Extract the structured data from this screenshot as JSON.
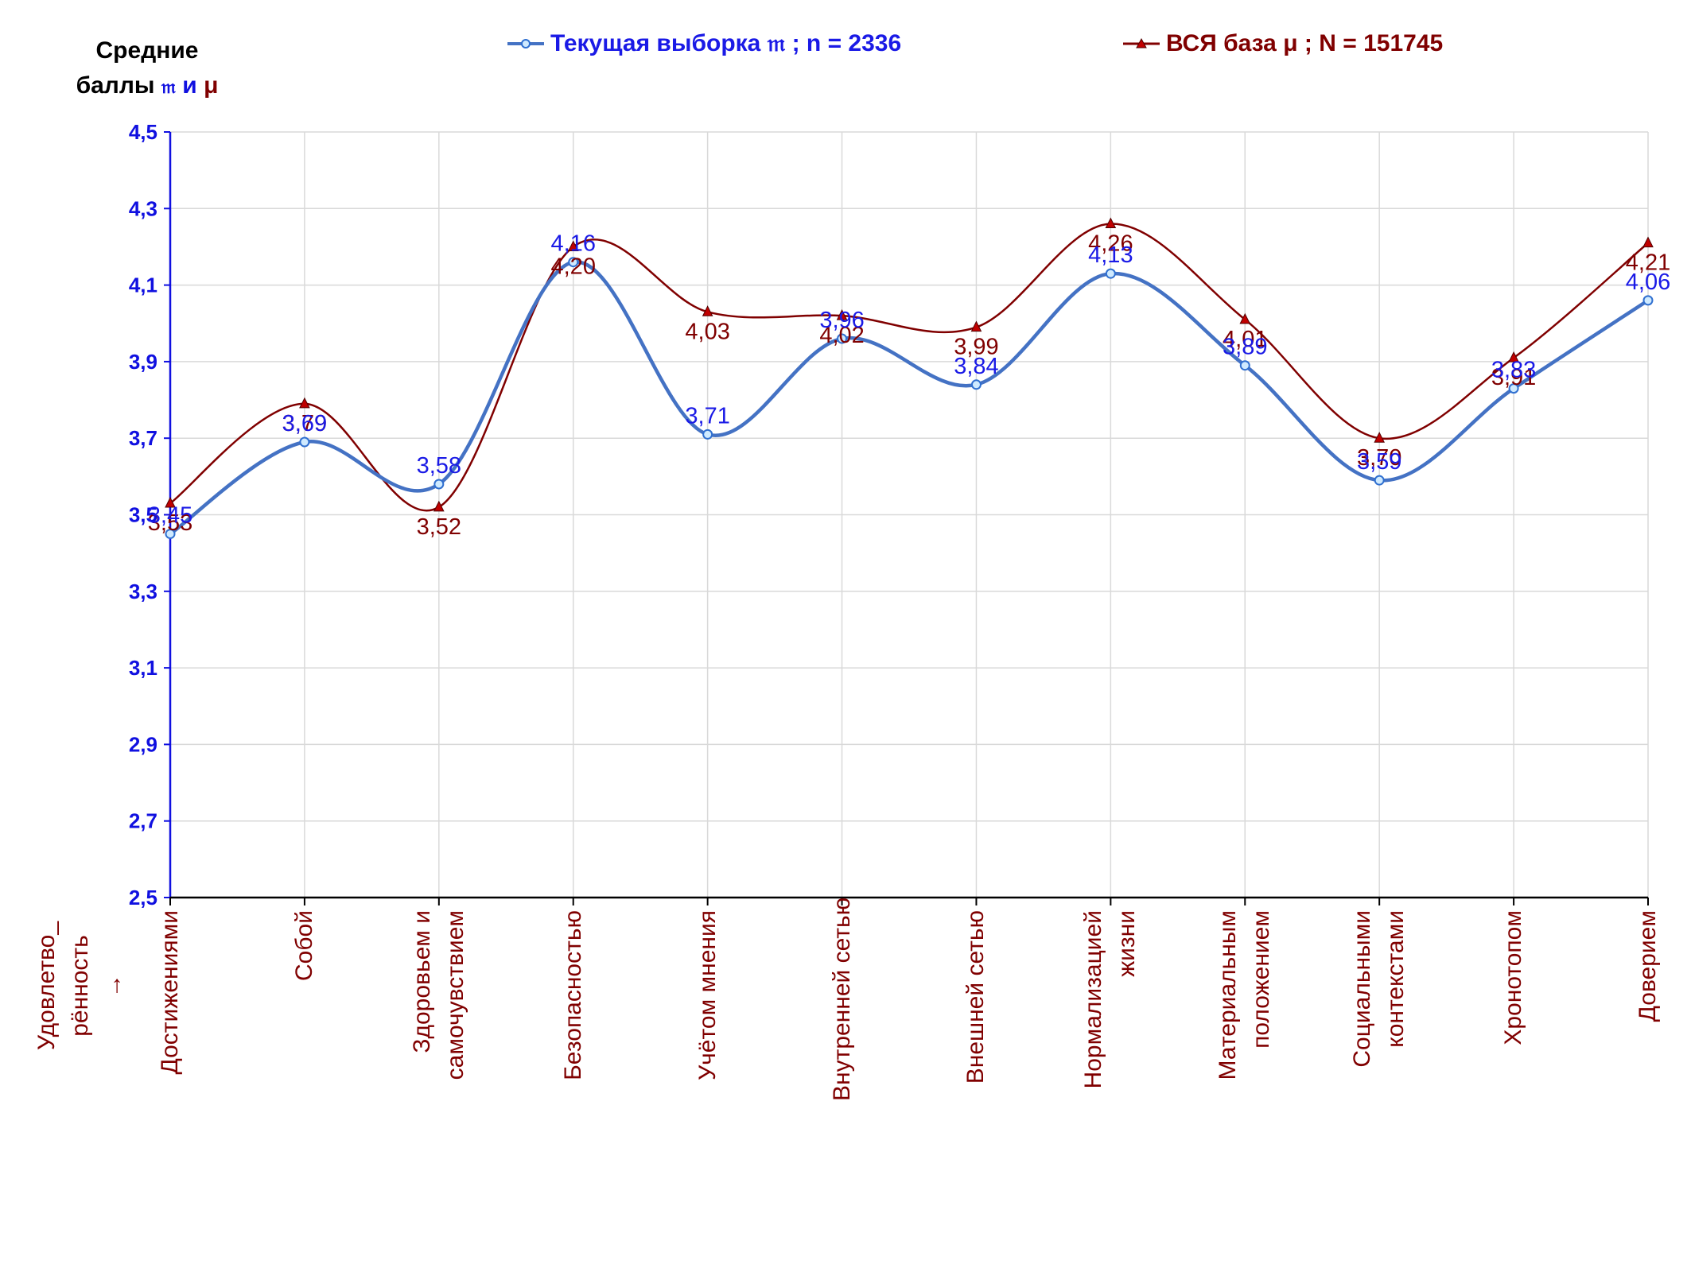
{
  "y_title": {
    "line1": "Средние",
    "line2_prefix": "баллы",
    "sym_m": "𝔪",
    "and": "и",
    "sym_mu": "μ"
  },
  "legend": [
    {
      "label": "Текущая выборка 𝔪 ; n = 2336",
      "color": "#4472c4",
      "text_color": "#1a1ae6"
    },
    {
      "label": "ВСЯ база μ ; N = 151745",
      "color": "#800000",
      "text_color": "#800000"
    }
  ],
  "row_title": [
    "Удовлетво_",
    "рённость",
    "→"
  ],
  "chart_data": {
    "type": "line",
    "categories": [
      [
        "Достижениями"
      ],
      [
        "Собой"
      ],
      [
        "Здоровьем и",
        "самочувствием"
      ],
      [
        "Безопасностью"
      ],
      [
        "Учётом мнения"
      ],
      [
        "Внутренней сетью"
      ],
      [
        "Внешней сетью"
      ],
      [
        "Нормализацией",
        "жизни"
      ],
      [
        "Материальным",
        "положением"
      ],
      [
        "Социальными",
        "контекстами"
      ],
      [
        "Хронотопом"
      ],
      [
        "Доверием"
      ]
    ],
    "series": [
      {
        "name": "Текущая выборка 𝔪 ; n = 2336",
        "color": "#4472c4",
        "label_color": "#1a1ae6",
        "values": [
          3.45,
          3.69,
          3.58,
          4.16,
          3.71,
          3.96,
          3.84,
          4.13,
          3.89,
          3.59,
          3.83,
          4.06
        ],
        "labels": [
          "3,45",
          "3,69",
          "3,58",
          "4,16",
          "3,71",
          "3,96",
          "3,84",
          "4,13",
          "3,89",
          "3,59",
          "3,83",
          "4,06"
        ]
      },
      {
        "name": "ВСЯ база μ ; N = 151745",
        "color": "#800000",
        "label_color": "#800000",
        "values": [
          3.53,
          3.79,
          3.52,
          4.2,
          4.03,
          4.02,
          3.99,
          4.26,
          4.01,
          3.7,
          3.91,
          4.21
        ],
        "labels": [
          "3,53",
          "3,79",
          "3,52",
          "4,20",
          "4,03",
          "4,02",
          "3,99",
          "4,26",
          "4,01",
          "3,70",
          "3,91",
          "4,21"
        ]
      }
    ],
    "ylim": [
      2.5,
      4.5
    ],
    "yticks": [
      "2,5",
      "2,7",
      "2,9",
      "3,1",
      "3,3",
      "3,5",
      "3,7",
      "3,9",
      "4,1",
      "4,3",
      "4,5"
    ],
    "ytick_color": "#1010e0",
    "grid": true
  }
}
